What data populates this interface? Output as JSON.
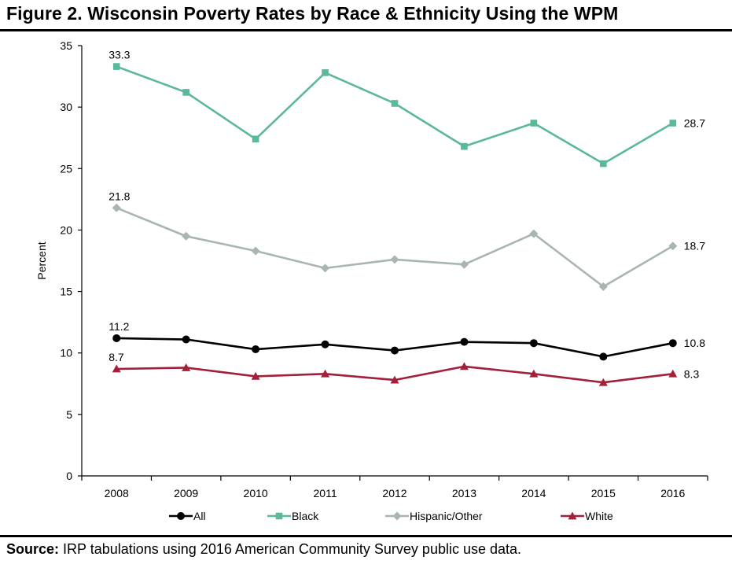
{
  "title": "Figure 2. Wisconsin Poverty Rates by Race & Ethnicity Using the WPM",
  "source": {
    "label": "Source:",
    "text": " IRP tabulations using 2016 American Community Survey public use data."
  },
  "chart_data": {
    "type": "line",
    "title": "Figure 2. Wisconsin Poverty Rates by Race & Ethnicity Using the WPM",
    "xlabel": "",
    "ylabel": "Percent",
    "categories": [
      "2008",
      "2009",
      "2010",
      "2011",
      "2012",
      "2013",
      "2014",
      "2015",
      "2016"
    ],
    "ylim": [
      0,
      35
    ],
    "yticks": [
      0,
      5,
      10,
      15,
      20,
      25,
      30,
      35
    ],
    "grid": false,
    "legend_position": "bottom",
    "series": [
      {
        "name": "All",
        "color": "#000000",
        "marker": "circle",
        "values": [
          11.2,
          11.1,
          10.3,
          10.7,
          10.2,
          10.9,
          10.8,
          9.7,
          10.8
        ],
        "labels": {
          "first": "11.2",
          "last": "10.8"
        }
      },
      {
        "name": "Black",
        "color": "#5bb89c",
        "marker": "square",
        "values": [
          33.3,
          31.2,
          27.4,
          32.8,
          30.3,
          26.8,
          28.7,
          25.4,
          28.7
        ],
        "labels": {
          "first": "33.3",
          "last": "28.7"
        }
      },
      {
        "name": "Hispanic/Other",
        "color": "#a9b5b0",
        "marker": "diamond",
        "values": [
          21.8,
          19.5,
          18.3,
          16.9,
          17.6,
          17.2,
          19.7,
          15.4,
          18.7
        ],
        "labels": {
          "first": "21.8",
          "last": "18.7"
        }
      },
      {
        "name": "White",
        "color": "#a31f3a",
        "marker": "triangle",
        "values": [
          8.7,
          8.8,
          8.1,
          8.3,
          7.8,
          8.9,
          8.3,
          7.6,
          8.3
        ],
        "labels": {
          "first": "8.7",
          "last": "8.3"
        }
      }
    ]
  }
}
